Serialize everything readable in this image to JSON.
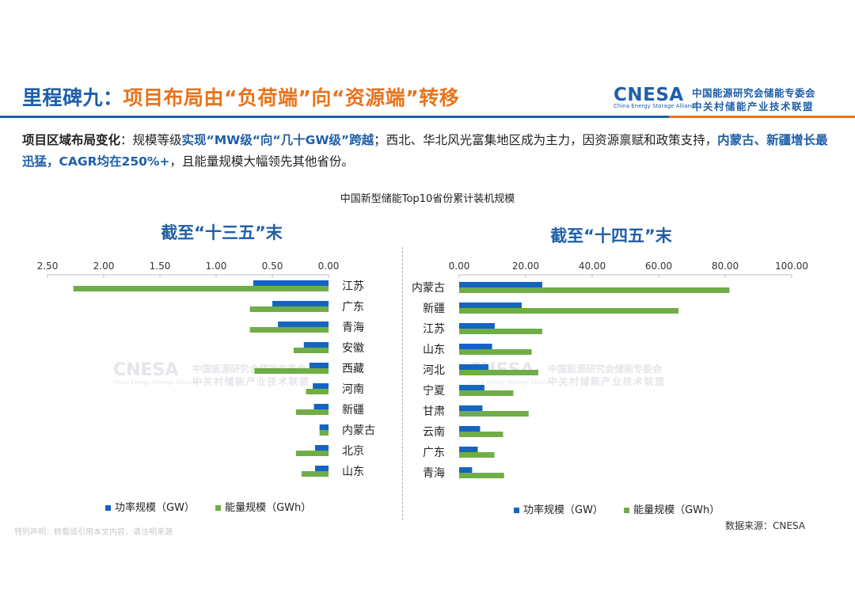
{
  "header": {
    "title_prefix": "里程碑九：",
    "title_main": "项目布局由“负荷端”向“资源端”转移",
    "logo_mark": "CNESA",
    "logo_sub": "China Energy Storage Alliance",
    "logo_cn_line1": "中国能源研究会储能专委会",
    "logo_cn_line2": "中关村储能产业技术联盟"
  },
  "summary": {
    "lead": "项目区域布局变化",
    "text1": "：规模等级",
    "hl1": "实现“MW级“向“几十GW级”跨越",
    "text2": "；西北、华北风光富集地区成为主力，因资源禀赋和政策支持，",
    "hl2": "内蒙古、新疆增长最迅猛，CAGR均在250%+",
    "text3": "，且能量规模大幅领先其他省份。"
  },
  "chart_data": [
    {
      "type": "bar",
      "orientation": "horizontal-reversed",
      "title": "中国新型储能Top10省份累计装机规模",
      "panel_title": "截至“十三五”末",
      "categories": [
        "江苏",
        "广东",
        "青海",
        "安徽",
        "西藏",
        "河南",
        "新疆",
        "内蒙古",
        "北京",
        "山东"
      ],
      "series": [
        {
          "name": "功率规模（GW）",
          "color": "#1565c0",
          "values": [
            0.67,
            0.5,
            0.45,
            0.22,
            0.17,
            0.14,
            0.13,
            0.08,
            0.12,
            0.12
          ]
        },
        {
          "name": "能量规模（GWh）",
          "color": "#70ad47",
          "values": [
            2.27,
            0.7,
            0.7,
            0.31,
            0.66,
            0.2,
            0.29,
            0.08,
            0.29,
            0.24
          ]
        }
      ],
      "xlim": [
        0,
        2.5
      ],
      "ticks": [
        "0.00",
        "0.50",
        "1.00",
        "1.50",
        "2.00",
        "2.50"
      ],
      "tick_values": [
        0,
        0.5,
        1.0,
        1.5,
        2.0,
        2.5
      ],
      "grid": false,
      "legend_position": "bottom"
    },
    {
      "type": "bar",
      "orientation": "horizontal",
      "panel_title": "截至“十四五”末",
      "categories": [
        "内蒙古",
        "新疆",
        "江苏",
        "山东",
        "河北",
        "宁夏",
        "甘肃",
        "云南",
        "广东",
        "青海"
      ],
      "series": [
        {
          "name": "功率规模（GW）",
          "color": "#1565c0",
          "values": [
            25.0,
            18.8,
            10.7,
            9.9,
            8.8,
            7.6,
            7.0,
            6.3,
            5.6,
            3.9
          ]
        },
        {
          "name": "能量规模（GWh）",
          "color": "#70ad47",
          "values": [
            81.3,
            66.0,
            25.0,
            21.8,
            23.8,
            16.3,
            20.9,
            13.2,
            10.6,
            13.5
          ]
        }
      ],
      "xlim": [
        0,
        100
      ],
      "ticks": [
        "0.00",
        "20.00",
        "40.00",
        "60.00",
        "80.00",
        "100.00"
      ],
      "tick_values": [
        0,
        20,
        40,
        60,
        80,
        100
      ],
      "grid": false,
      "legend_position": "bottom"
    }
  ],
  "footer": {
    "source": "数据来源：CNESA",
    "note": "特别声明：转载或引用本文内容，请注明来源"
  },
  "watermark": {
    "mark": "CNESA",
    "sub": "China Energy Storage Alliance",
    "cn1": "中国能源研究会储能专委会",
    "cn2": "中关村储能产业技术联盟"
  },
  "colors": {
    "brand_blue": "#1f5fa8",
    "brand_orange": "#e8741d",
    "power": "#1565c0",
    "energy": "#70ad47"
  }
}
